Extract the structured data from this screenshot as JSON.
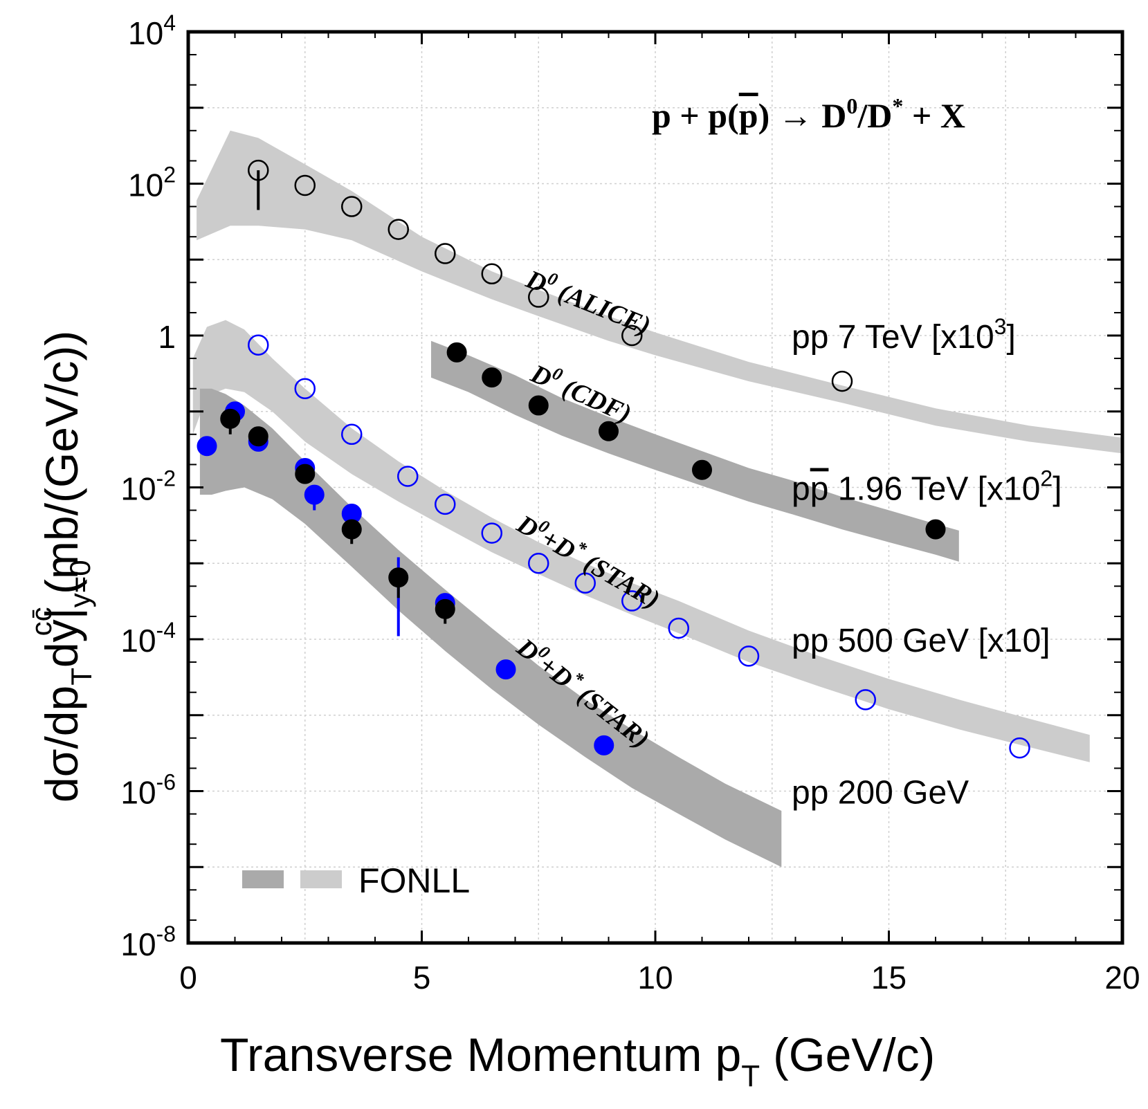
{
  "chart_data": {
    "type": "scatter",
    "title": "p + p(p̄) → D⁰/D* + X",
    "title_parts": {
      "a": "p + p(",
      "pbar": "p",
      "b": ") → D",
      "sup0": "0",
      "c": "/D",
      "supstar": "*",
      "d": " + X"
    },
    "xlabel": "Transverse Momentum p",
    "xlabel_sub": "T",
    "xlabel_tail": " (GeV/c)",
    "ylabel_parts": {
      "a": "dσ/dp",
      "sub_t": "T",
      "b": "dy|",
      "sub_y": "y=0",
      "sup_cc": "cc̄",
      "c": "  (mb/(GeV/c))"
    },
    "xlim": [
      0,
      20
    ],
    "ylim": [
      1e-08,
      10000.0
    ],
    "yscale": "log",
    "grid": true,
    "xticks": [
      "0",
      "5",
      "10",
      "15",
      "20"
    ],
    "yticks": [
      {
        "base": "10",
        "exp": "4",
        "value": 10000.0
      },
      {
        "base": "10",
        "exp": "2",
        "value": 100.0
      },
      {
        "base": "1",
        "exp": "",
        "value": 1
      },
      {
        "base": "10",
        "exp": "-2",
        "value": 0.01
      },
      {
        "base": "10",
        "exp": "-4",
        "value": 0.0001
      },
      {
        "base": "10",
        "exp": "-6",
        "value": 1e-06
      },
      {
        "base": "10",
        "exp": "-8",
        "value": 1e-08
      }
    ],
    "bands": [
      {
        "tone": "light",
        "color": "#cccccc",
        "x": [
          0.18,
          0.9,
          1.5,
          2.5,
          3.5,
          5,
          6.5,
          7.5,
          9,
          10,
          12,
          14,
          16,
          18,
          20
        ],
        "upper": [
          60,
          500,
          400,
          180,
          80,
          20,
          7,
          4,
          1.8,
          1.1,
          0.45,
          0.22,
          0.11,
          0.065,
          0.045
        ],
        "lower": [
          18,
          28,
          28,
          25,
          18,
          7,
          3,
          1.8,
          0.85,
          0.55,
          0.25,
          0.13,
          0.065,
          0.04,
          0.028
        ]
      },
      {
        "tone": "dark",
        "color": "#aaaaaa",
        "x": [
          5.2,
          6,
          7,
          8,
          9,
          10,
          11,
          12,
          13,
          14,
          15,
          16,
          16.5
        ],
        "upper": [
          0.85,
          0.55,
          0.3,
          0.15,
          0.085,
          0.05,
          0.03,
          0.018,
          0.012,
          0.0075,
          0.005,
          0.0033,
          0.0027
        ],
        "lower": [
          0.28,
          0.18,
          0.09,
          0.048,
          0.028,
          0.017,
          0.0105,
          0.0065,
          0.0043,
          0.0028,
          0.0019,
          0.0013,
          0.00105
        ]
      },
      {
        "tone": "light",
        "color": "#cccccc",
        "x": [
          0.1,
          0.4,
          0.8,
          1.2,
          1.8,
          2.5,
          3.5,
          4.5,
          5.5,
          6.5,
          7.5,
          8.5,
          9.5,
          10.5,
          12,
          13.5,
          15,
          16.5,
          18,
          19.3
        ],
        "upper": [
          0.5,
          1.3,
          1.6,
          1.2,
          0.5,
          0.2,
          0.06,
          0.022,
          0.009,
          0.004,
          0.0019,
          0.001,
          0.00055,
          0.00032,
          0.00013,
          6e-05,
          3e-05,
          1.6e-05,
          9e-06,
          5.5e-06
        ],
        "lower": [
          0.05,
          0.16,
          0.2,
          0.18,
          0.1,
          0.04,
          0.015,
          0.0065,
          0.003,
          0.0014,
          0.00072,
          0.00038,
          0.00021,
          0.00012,
          5e-05,
          2.4e-05,
          1.2e-05,
          6.5e-06,
          3.8e-06,
          2.4e-06
        ]
      },
      {
        "tone": "dark",
        "color": "#aaaaaa",
        "x": [
          0.25,
          0.5,
          0.8,
          1.2,
          1.8,
          2.5,
          3.5,
          4.5,
          5.5,
          6.5,
          7.5,
          8.5,
          9.5,
          10.5,
          11.5,
          12.7
        ],
        "upper": [
          0.2,
          0.2,
          0.17,
          0.12,
          0.06,
          0.022,
          0.0055,
          0.0015,
          0.00045,
          0.00014,
          4.5e-05,
          1.6e-05,
          6.5e-06,
          2.8e-06,
          1.25e-06,
          5.5e-07
        ],
        "lower": [
          0.008,
          0.008,
          0.009,
          0.01,
          0.007,
          0.0033,
          0.0009,
          0.00024,
          7e-05,
          2.2e-05,
          7.5e-06,
          2.8e-06,
          1.1e-06,
          5e-07,
          2.3e-07,
          1e-07
        ]
      }
    ],
    "series": [
      {
        "experiment": "ALICE",
        "marker": "open-black",
        "x": [
          1.5,
          2.5,
          3.5,
          4.5,
          5.5,
          6.5,
          7.5,
          9.5,
          14
        ],
        "y": [
          150,
          95,
          50,
          25,
          12,
          6.5,
          3.2,
          1.0,
          0.25
        ]
      },
      {
        "experiment": "CDF",
        "marker": "filled-black",
        "x": [
          5.75,
          6.5,
          7.5,
          9,
          11,
          16
        ],
        "y": [
          0.6,
          0.28,
          0.12,
          0.055,
          0.017,
          0.0028
        ]
      },
      {
        "experiment": "STAR 500 GeV",
        "marker": "open-blue",
        "x": [
          1.5,
          2.5,
          3.5,
          4.7,
          5.5,
          6.5,
          7.5,
          8.5,
          9.5,
          10.5,
          12,
          14.5,
          17.8
        ],
        "y": [
          0.75,
          0.2,
          0.05,
          0.014,
          0.006,
          0.0025,
          0.001,
          0.00055,
          0.00032,
          0.00014,
          6e-05,
          1.6e-05,
          3.7e-06
        ]
      },
      {
        "experiment": "STAR 200 GeV",
        "marker": "filled-blue",
        "x": [
          0.4,
          1.0,
          1.5,
          2.5,
          2.7,
          3.5,
          5.5,
          6.8,
          8.9
        ],
        "y": [
          0.035,
          0.1,
          0.04,
          0.018,
          0.008,
          0.0045,
          0.0003,
          4e-05,
          4e-06
        ]
      },
      {
        "experiment": "STAR 200 GeV (black)",
        "marker": "filled-black",
        "x": [
          0.9,
          1.5,
          2.5,
          3.5,
          4.5,
          5.5
        ],
        "y": [
          0.08,
          0.047,
          0.015,
          0.0028,
          0.00065,
          0.00025
        ]
      }
    ],
    "error_bars": [
      {
        "x": 1.5,
        "lo": 45,
        "hi": 150,
        "color": "#000"
      },
      {
        "x": 0.9,
        "lo": 0.05,
        "hi": 0.08,
        "color": "#000"
      },
      {
        "x": 2.7,
        "lo": 0.005,
        "hi": 0.008,
        "color": "#0000ff"
      },
      {
        "x": 3.5,
        "lo": 0.0018,
        "hi": 0.0028,
        "color": "#000"
      },
      {
        "x": 4.5,
        "lo": 0.00011,
        "hi": 0.0012,
        "color": "#0000ff"
      },
      {
        "x": 4.5,
        "lo": 0.00035,
        "hi": 0.00065,
        "color": "#000"
      },
      {
        "x": 5.5,
        "lo": 0.00016,
        "hi": 0.00025,
        "color": "#000"
      }
    ],
    "curve_labels": [
      {
        "name": "D0 (ALICE)",
        "base": "D",
        "sup": "0",
        "tail": " (ALICE)",
        "x": 7.2,
        "y": 4.5,
        "angle": 22
      },
      {
        "name": "D0 (CDF)",
        "base": "D",
        "sup": "0",
        "tail": " (CDF)",
        "x": 7.3,
        "y": 0.26,
        "angle": 24
      },
      {
        "name": "D0+D* (STAR) 500",
        "base": "D",
        "sup": "0",
        "mid": "+D",
        "sup2": "*",
        "tail": " (STAR)",
        "x": 7.0,
        "y": 0.0028,
        "angle": 30
      },
      {
        "name": "D0+D* (STAR) 200",
        "base": "D",
        "sup": "0",
        "mid": "+D",
        "sup2": "*",
        "tail": " (STAR)",
        "x": 7.0,
        "y": 7e-05,
        "angle": 38
      }
    ],
    "energy_labels": [
      {
        "a": "pp 7 TeV [x10",
        "sup": "3",
        "b": "]",
        "y": 1.0
      },
      {
        "a": "p",
        "pbar": "p",
        "mid": " 1.96 TeV [x10",
        "sup": "2",
        "b": "]",
        "y": 0.01
      },
      {
        "a": "pp 500 GeV [x10]",
        "sup": "",
        "b": "",
        "y": 0.0001
      },
      {
        "a": "pp 200 GeV",
        "sup": "",
        "b": "",
        "y": 1e-06
      }
    ],
    "legend": {
      "label": "FONLL",
      "position": "bottom-left",
      "swatches": [
        "#aaaaaa",
        "#cccccc"
      ]
    }
  }
}
